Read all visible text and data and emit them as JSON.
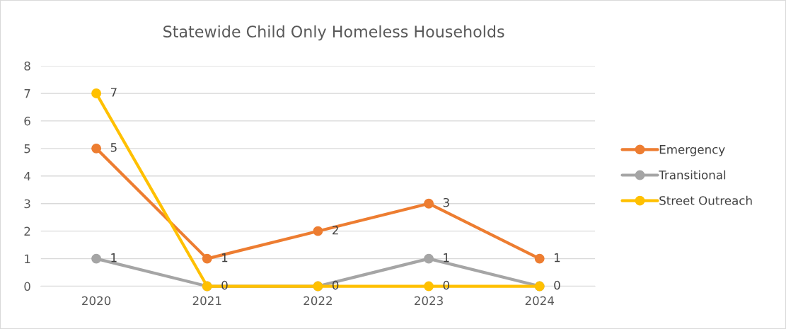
{
  "chart_data": {
    "type": "line",
    "title": "Statewide Child Only Homeless Households",
    "categories": [
      "2020",
      "2021",
      "2022",
      "2023",
      "2024"
    ],
    "series": [
      {
        "name": "Emergency",
        "color": "#ed7d31",
        "values": [
          5,
          1,
          2,
          3,
          1
        ],
        "value_labels": [
          "5",
          "1",
          "2",
          "3",
          "1"
        ]
      },
      {
        "name": "Transitional",
        "color": "#a5a5a5",
        "values": [
          1,
          0,
          0,
          1,
          0
        ],
        "value_labels": [
          "1",
          null,
          null,
          "1",
          null
        ]
      },
      {
        "name": "Street Outreach",
        "color": "#ffc000",
        "values": [
          7,
          0,
          0,
          0,
          0
        ],
        "value_labels": [
          "7",
          "0",
          "0",
          "0",
          "0"
        ]
      }
    ],
    "ylim": [
      0,
      8
    ],
    "yticks": [
      0,
      1,
      2,
      3,
      4,
      5,
      6,
      7,
      8
    ],
    "grid": "y",
    "legend": "right",
    "marker": "circle",
    "line_style": "solid"
  }
}
